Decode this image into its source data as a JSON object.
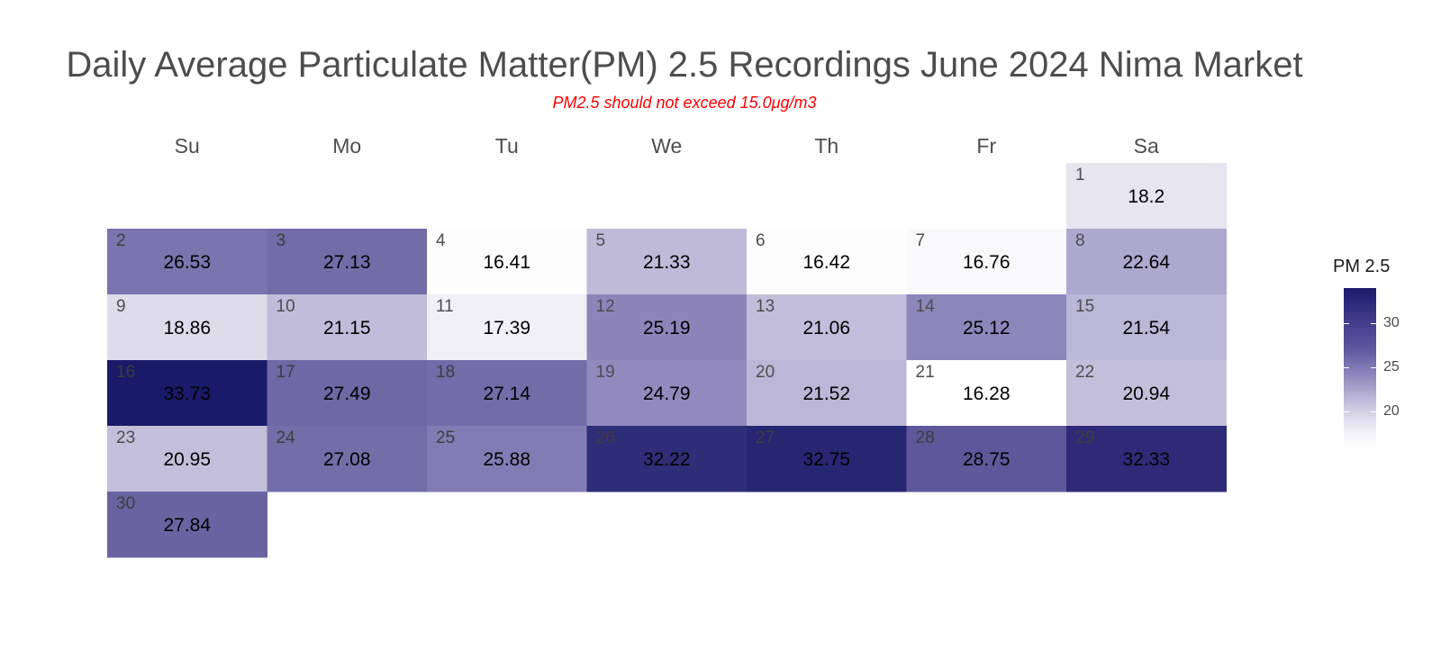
{
  "chart_data": {
    "type": "heatmap",
    "title": "Daily Average Particulate Matter(PM) 2.5 Recordings June 2024 Nima Market",
    "subtitle": "PM2.5 should not exceed 15.0μg/m3",
    "weekdays": [
      "Su",
      "Mo",
      "Tu",
      "We",
      "Th",
      "Fr",
      "Sa"
    ],
    "first_weekday_index": 6,
    "days": [
      1,
      2,
      3,
      4,
      5,
      6,
      7,
      8,
      9,
      10,
      11,
      12,
      13,
      14,
      15,
      16,
      17,
      18,
      19,
      20,
      21,
      22,
      23,
      24,
      25,
      26,
      27,
      28,
      29,
      30
    ],
    "values": [
      18.2,
      26.53,
      27.13,
      16.41,
      21.33,
      16.42,
      16.76,
      22.64,
      18.86,
      21.15,
      17.39,
      25.19,
      21.06,
      25.12,
      21.54,
      33.73,
      27.49,
      27.14,
      24.79,
      21.52,
      16.28,
      20.94,
      20.95,
      27.08,
      25.88,
      32.22,
      32.75,
      28.75,
      32.33,
      27.84
    ],
    "color_scale": {
      "low": "#ffffff",
      "mid": "#8f87bc",
      "high": "#1a1a6a",
      "min": 16.28,
      "max": 33.73
    },
    "legend": {
      "title": "PM 2.5",
      "ticks": [
        20,
        25,
        30
      ],
      "tick_labels": [
        "20",
        "25",
        "30"
      ],
      "placement": "right"
    }
  }
}
